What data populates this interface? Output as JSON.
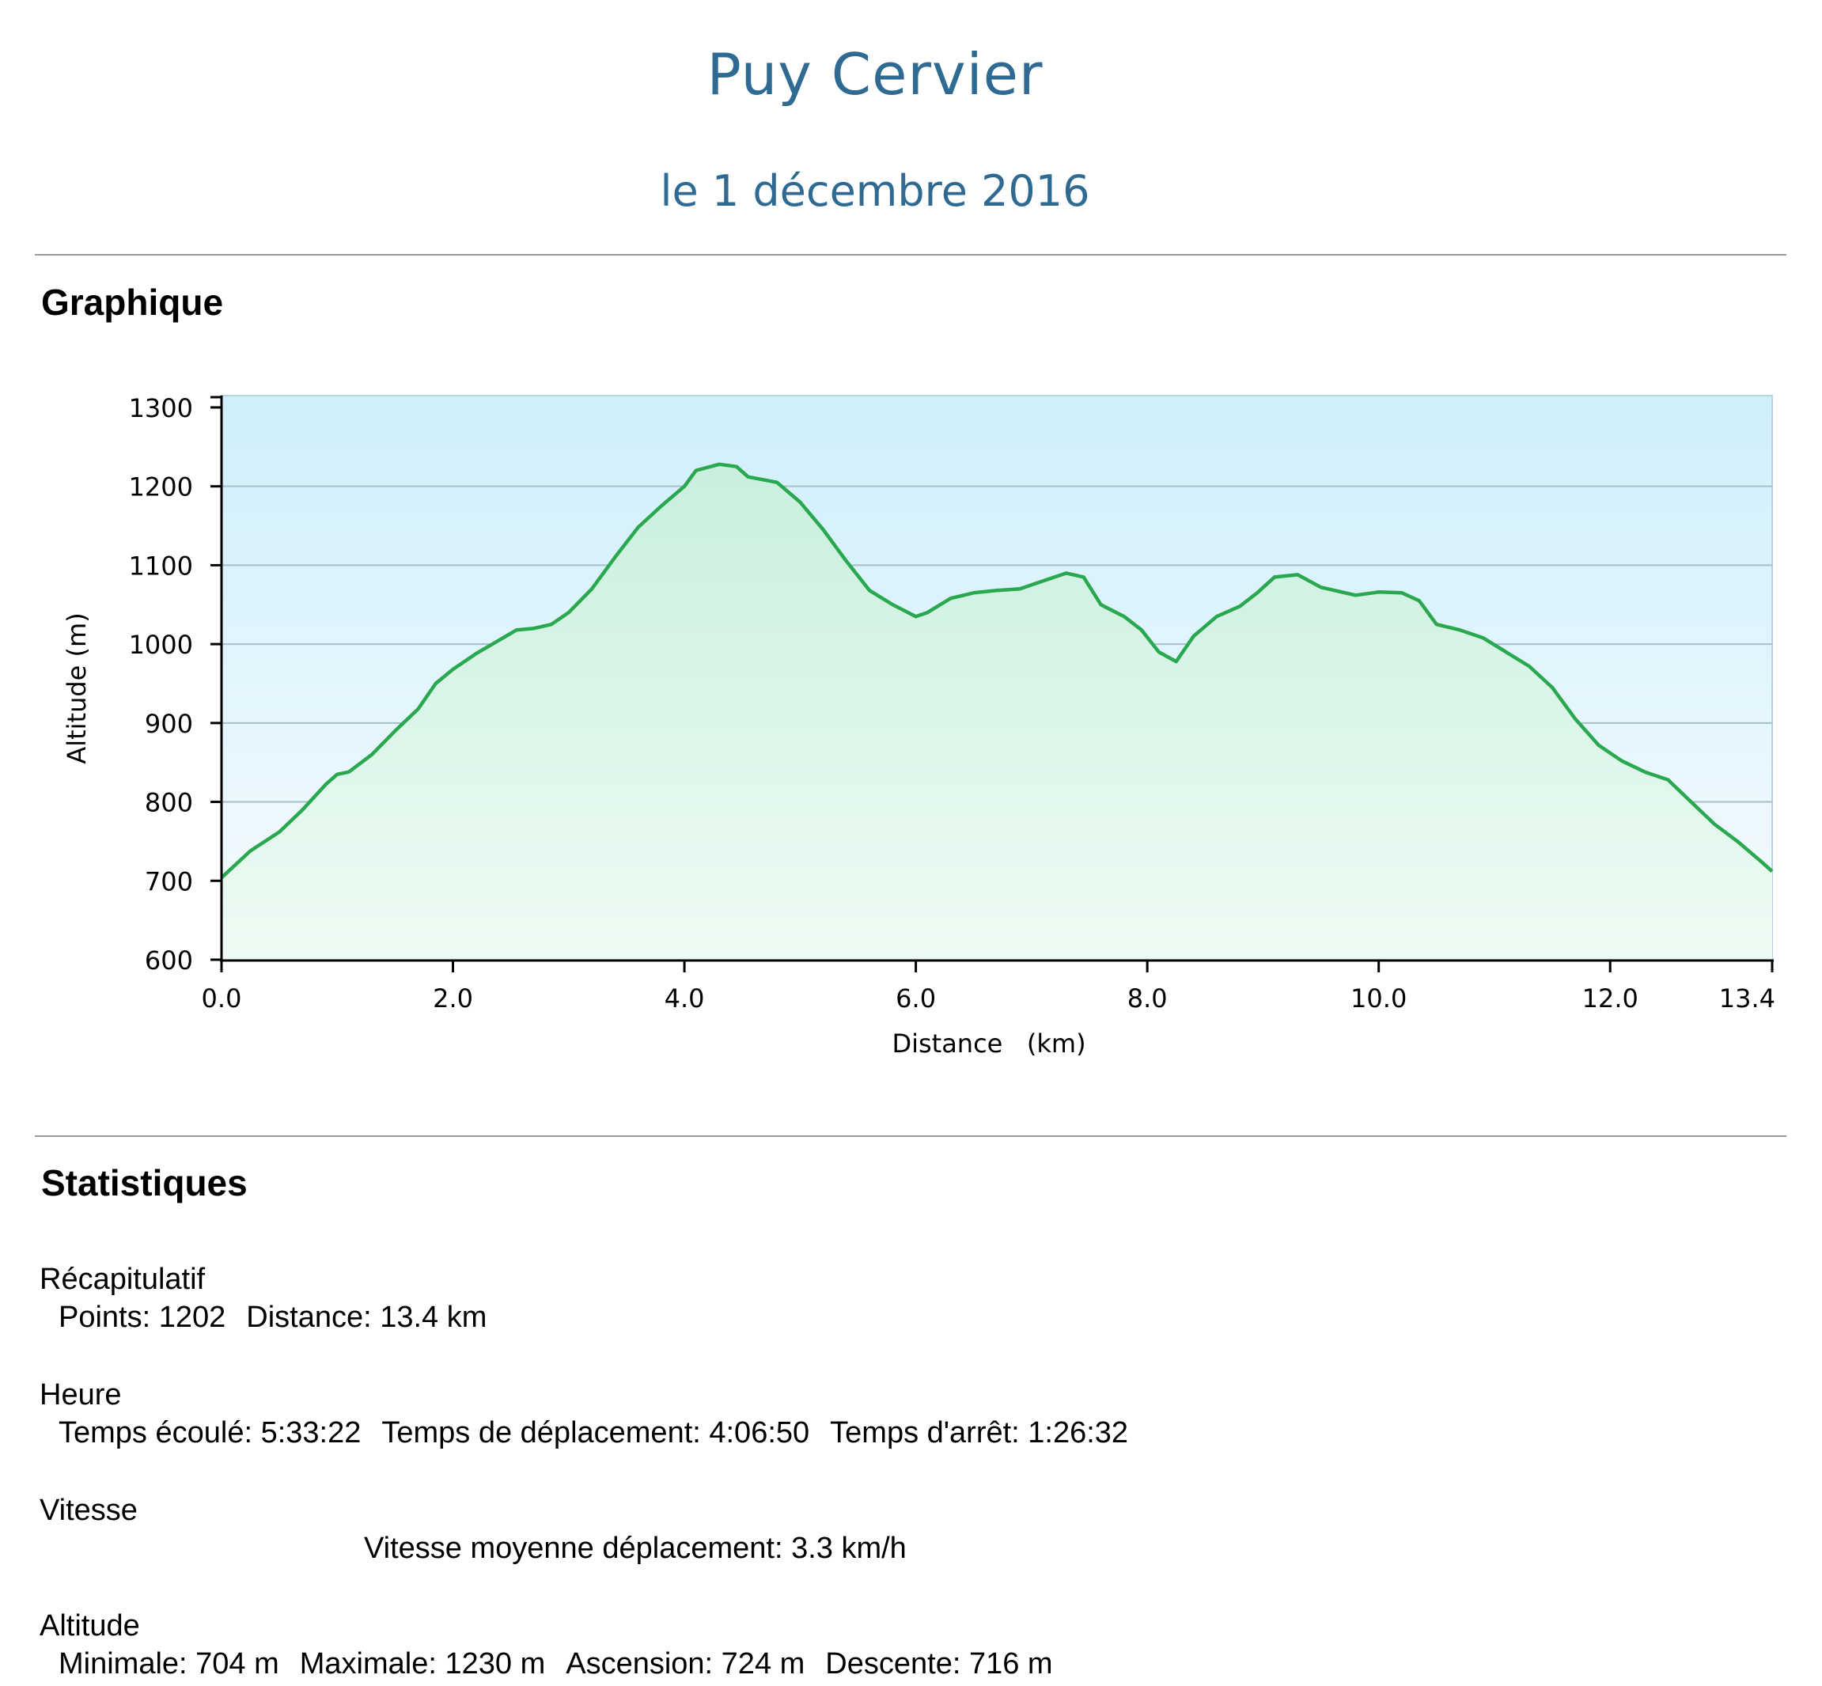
{
  "header": {
    "title": "Puy Cervier",
    "subtitle": "le 1  décembre 2016"
  },
  "sections": {
    "graph_title": "Graphique",
    "stats_title": "Statistiques"
  },
  "chart_data": {
    "type": "area",
    "xlabel": "Distance   (km)",
    "ylabel": "Altitude (m)",
    "xlim": [
      0,
      13.4
    ],
    "ylim": [
      600,
      1300
    ],
    "x_ticks": [
      "0.0",
      "2.0",
      "4.0",
      "6.0",
      "8.0",
      "10.0",
      "12.0",
      "13.4"
    ],
    "x_tick_values": [
      0,
      2,
      4,
      6,
      8,
      10,
      12,
      13.4
    ],
    "y_ticks": [
      "600",
      "700",
      "800",
      "900",
      "1000",
      "1100",
      "1200",
      "1300"
    ],
    "y_tick_values": [
      600,
      700,
      800,
      900,
      1000,
      1100,
      1200,
      1300
    ],
    "grid": true,
    "line_color": "#2aa84f",
    "x": [
      0,
      0.25,
      0.5,
      0.7,
      0.9,
      1.0,
      1.1,
      1.3,
      1.5,
      1.7,
      1.85,
      2.0,
      2.2,
      2.4,
      2.55,
      2.7,
      2.85,
      3.0,
      3.2,
      3.4,
      3.6,
      3.8,
      4.0,
      4.1,
      4.3,
      4.45,
      4.55,
      4.8,
      5.0,
      5.2,
      5.4,
      5.6,
      5.8,
      6.0,
      6.1,
      6.3,
      6.5,
      6.7,
      6.9,
      7.1,
      7.3,
      7.45,
      7.6,
      7.8,
      7.95,
      8.1,
      8.25,
      8.4,
      8.6,
      8.8,
      8.95,
      9.1,
      9.3,
      9.5,
      9.8,
      10.0,
      10.2,
      10.35,
      10.5,
      10.7,
      10.9,
      11.1,
      11.3,
      11.5,
      11.7,
      11.9,
      12.1,
      12.3,
      12.5,
      12.7,
      12.9,
      13.1,
      13.3,
      13.4
    ],
    "y": [
      704,
      738,
      762,
      790,
      822,
      835,
      838,
      860,
      890,
      918,
      950,
      968,
      988,
      1005,
      1018,
      1020,
      1025,
      1040,
      1070,
      1110,
      1148,
      1175,
      1200,
      1220,
      1228,
      1225,
      1212,
      1205,
      1180,
      1145,
      1105,
      1068,
      1050,
      1035,
      1040,
      1058,
      1065,
      1068,
      1070,
      1080,
      1090,
      1085,
      1050,
      1035,
      1018,
      990,
      978,
      1010,
      1035,
      1048,
      1065,
      1085,
      1088,
      1072,
      1062,
      1066,
      1065,
      1055,
      1025,
      1018,
      1008,
      990,
      972,
      945,
      905,
      872,
      852,
      838,
      828,
      800,
      772,
      750,
      725,
      712
    ]
  },
  "stats": {
    "recap": {
      "label": "Récapitulatif",
      "points": "Points: 1202",
      "distance": "Distance: 13.4 km"
    },
    "heure": {
      "label": "Heure",
      "elapsed": "Temps écoulé: 5:33:22",
      "moving": "Temps de déplacement: 4:06:50",
      "stopped": "Temps d'arrêt: 1:26:32"
    },
    "vitesse": {
      "label": "Vitesse",
      "moving_avg": "Vitesse moyenne déplacement: 3.3 km/h"
    },
    "altitude": {
      "label": "Altitude",
      "min": "Minimale: 704 m",
      "max": "Maximale: 1230 m",
      "ascent": "Ascension: 724 m",
      "descent": "Descente: 716 m"
    }
  }
}
